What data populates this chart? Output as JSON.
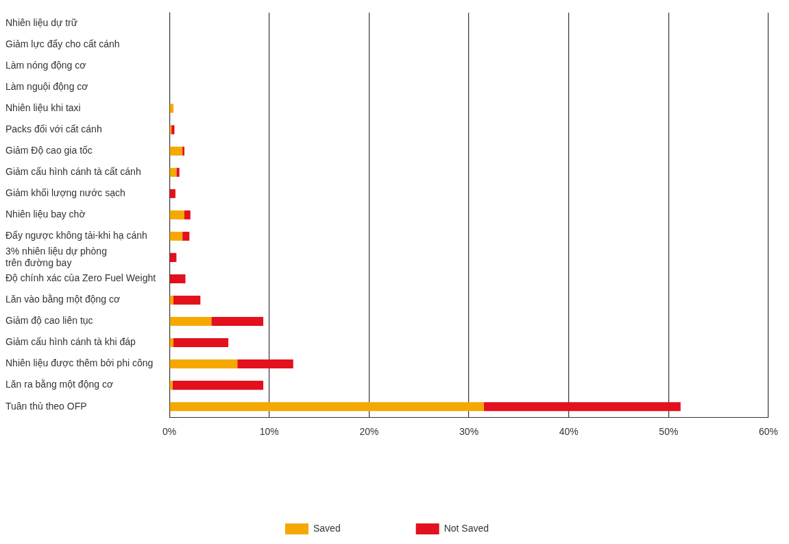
{
  "chart_data": {
    "type": "bar",
    "orientation": "horizontal",
    "stacked": true,
    "categories": [
      "Nhiên liệu dự trữ",
      "Giảm lực đẩy cho cất cánh",
      "Làm nóng động cơ",
      "Làm nguội động cơ",
      "Nhiên liệu khi taxi",
      "Packs đối với cất cánh",
      "Giảm Độ cao gia tốc",
      "Giảm cấu hình cánh tà cất cánh",
      "Giảm khối lượng nước sạch",
      "Nhiên liệu bay chờ",
      "Đẩy ngược không tải-khi hạ cánh",
      "3% nhiên liệu dự phòng trên đường bay",
      "Độ chính xác của Zero Fuel Weight",
      "Lăn vào bằng một động cơ",
      "Giảm độ cao liên tục",
      "Giảm cấu hình cánh tà khi đáp",
      "Nhiên liệu được thêm bởi phi công",
      "Lăn ra bằng một động cơ",
      "Tuân thủ theo OFP"
    ],
    "series": [
      {
        "name": "Saved",
        "color": "#f5a800",
        "values": [
          0,
          0,
          0,
          0,
          0.4,
          0.2,
          1.3,
          0.7,
          0,
          1.5,
          1.3,
          0,
          0,
          0.4,
          4.2,
          0.4,
          6.8,
          0.3,
          31.5
        ]
      },
      {
        "name": "Not Saved",
        "color": "#e3101e",
        "values": [
          0,
          0,
          0,
          0,
          0,
          0.3,
          0.2,
          0.3,
          0.6,
          0.6,
          0.7,
          0.7,
          1.6,
          2.7,
          5.2,
          5.5,
          5.6,
          9.1,
          19.7
        ]
      }
    ],
    "xlim": [
      0,
      60
    ],
    "xticks": [
      {
        "value": 0,
        "label": "0%"
      },
      {
        "value": 10,
        "label": "10%"
      },
      {
        "value": 20,
        "label": "20%"
      },
      {
        "value": 30,
        "label": "30%"
      },
      {
        "value": 40,
        "label": "40%"
      },
      {
        "value": 50,
        "label": "50%"
      },
      {
        "value": 60,
        "label": "60%"
      }
    ],
    "grid": "x",
    "legend": "bottom"
  }
}
